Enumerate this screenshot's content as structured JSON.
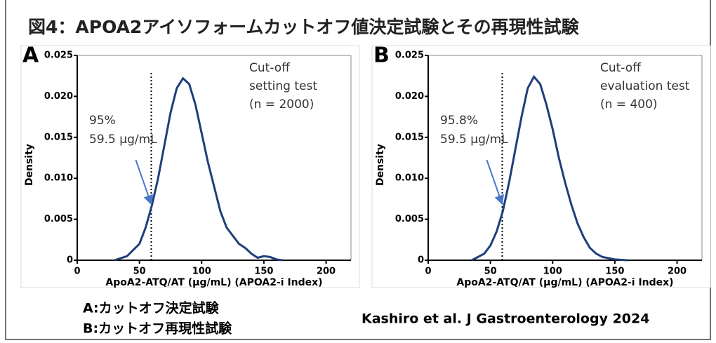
{
  "header": {
    "title": "図4：APOA2アイソフォームカットオフ値決定試験とその再現性試験"
  },
  "captions": [
    "A:カットオフ決定試験",
    "B:カットオフ再現性試験"
  ],
  "citation": "Kashiro et al. J Gastroenterology  2024",
  "chart_data": [
    {
      "type": "line",
      "panel": "A",
      "x_label": "ApoA2-ATQ/AT (μg/mL) (APOA2-i Index)",
      "y_label": "Density",
      "annotation": [
        "Cut-off",
        "setting test",
        "(n = 2000)"
      ],
      "cutoff_text": [
        "95%",
        "59.5 μg/mL"
      ],
      "cutoff_x": 59.5,
      "color": "#1f3f7a",
      "xlim": [
        0,
        220
      ],
      "ylim": [
        0,
        0.025
      ],
      "xticks": [
        0,
        50,
        100,
        150,
        200
      ],
      "yticks": [
        0,
        0.005,
        {
          "value": 0.01,
          "label": "0.010"
        },
        0.015,
        {
          "value": 0.02,
          "label": "0.020"
        },
        0.025
      ],
      "x": [
        30,
        40,
        50,
        55,
        60,
        65,
        70,
        75,
        80,
        85,
        90,
        95,
        100,
        105,
        110,
        115,
        120,
        130,
        135,
        140,
        145,
        150,
        155,
        160,
        165
      ],
      "values": [
        0,
        0.0005,
        0.002,
        0.004,
        0.0067,
        0.01,
        0.014,
        0.018,
        0.021,
        0.0222,
        0.0215,
        0.019,
        0.0155,
        0.012,
        0.009,
        0.006,
        0.004,
        0.002,
        0.0015,
        0.0008,
        0.0003,
        0.0005,
        0.0004,
        0.0001,
        0
      ]
    },
    {
      "type": "line",
      "panel": "B",
      "x_label": "ApoA2-ATQ/AT (μg/mL) (APOA2-i Index)",
      "y_label": "Density",
      "annotation": [
        "Cut-off",
        "evaluation test",
        "(n = 400)"
      ],
      "cutoff_text": [
        "95.8%",
        "59.5 μg/mL"
      ],
      "cutoff_x": 59.5,
      "color": "#1f3f7a",
      "xlim": [
        0,
        220
      ],
      "ylim": [
        0,
        0.025
      ],
      "xticks": [
        0,
        50,
        100,
        150,
        200
      ],
      "yticks": [
        0,
        0.005,
        {
          "value": 0.01,
          "label": "0.010"
        },
        0.015,
        {
          "value": 0.02,
          "label": "0.020"
        },
        0.025
      ],
      "x": [
        35,
        45,
        50,
        55,
        60,
        65,
        70,
        75,
        80,
        85,
        90,
        95,
        100,
        105,
        110,
        115,
        120,
        125,
        130,
        135,
        140,
        150,
        160
      ],
      "values": [
        0,
        0.0008,
        0.0018,
        0.0035,
        0.006,
        0.0095,
        0.0135,
        0.0175,
        0.021,
        0.0224,
        0.0215,
        0.019,
        0.016,
        0.0125,
        0.0095,
        0.0068,
        0.0045,
        0.0028,
        0.0015,
        0.0008,
        0.0004,
        0.0001,
        0
      ]
    }
  ]
}
